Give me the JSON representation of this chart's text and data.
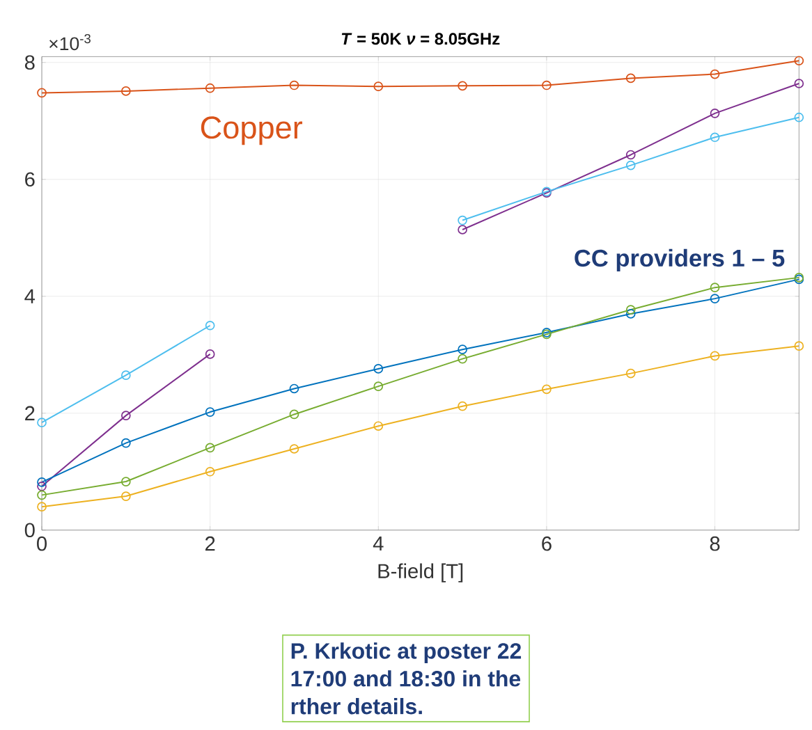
{
  "chart_data": {
    "type": "line",
    "title": "*T* = 50K *ν* = 8.05GHz",
    "xlabel": "B-field [T]",
    "x": [
      0,
      1,
      2,
      3,
      4,
      5,
      6,
      7,
      8,
      9
    ],
    "series": [
      {
        "name": "Copper",
        "color": "#d95319",
        "values": [
          7.48,
          7.51,
          7.56,
          7.61,
          7.59,
          7.6,
          7.61,
          7.73,
          7.8,
          8.03
        ]
      },
      {
        "color": "#7e2f8e",
        "values": [
          0.75,
          1.96,
          3.01,
          null,
          null,
          5.14,
          5.77,
          6.42,
          7.13,
          7.64
        ]
      },
      {
        "color": "#4dbeee",
        "values": [
          1.84,
          2.65,
          3.5,
          null,
          null,
          5.3,
          5.79,
          6.24,
          6.72,
          7.06
        ]
      },
      {
        "color": "#0072bd",
        "values": [
          0.82,
          1.49,
          2.02,
          2.42,
          2.76,
          3.09,
          3.38,
          3.7,
          3.96,
          4.29
        ]
      },
      {
        "color": "#77ac30",
        "values": [
          0.6,
          0.83,
          1.41,
          1.98,
          2.46,
          2.93,
          3.35,
          3.77,
          4.15,
          4.32
        ]
      },
      {
        "color": "#edb120",
        "values": [
          0.4,
          0.58,
          1.0,
          1.39,
          1.78,
          2.12,
          2.41,
          2.68,
          2.98,
          3.15
        ]
      }
    ],
    "xlim": [
      0,
      9
    ],
    "ylim": [
      0,
      8.1
    ],
    "xticks": [
      0,
      2,
      4,
      6,
      8
    ],
    "yticks": [
      0,
      2,
      4,
      6,
      8
    ],
    "grid": true,
    "legend": false,
    "marker": "circle",
    "line_style": "solid",
    "annotations": [
      "CC providers 1 – 5",
      "×10$^{-3}$",
      "P. Krkotic at poster 22",
      "17:00 and 18:30 in the",
      "rther details."
    ]
  }
}
